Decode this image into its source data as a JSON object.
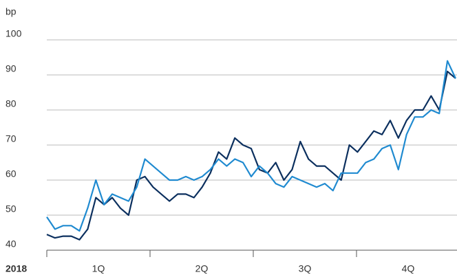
{
  "chart_data": {
    "type": "line",
    "y_unit": "bp",
    "year": "2018",
    "quarters": [
      "1Q",
      "2Q",
      "3Q",
      "4Q"
    ],
    "ylim": [
      40,
      100
    ],
    "yticks": [
      40,
      50,
      60,
      70,
      80,
      90,
      100
    ],
    "grid": true,
    "series": [
      {
        "color": "#0b2f5e",
        "values": [
          44.5,
          43.5,
          44,
          44,
          43,
          46,
          55,
          53,
          55,
          52,
          50,
          60,
          61,
          58,
          56,
          54,
          56,
          56,
          55,
          58,
          62,
          68,
          66,
          72,
          70,
          69,
          63,
          62,
          65,
          60,
          63,
          71,
          66,
          64,
          64,
          62,
          60,
          70,
          68,
          71,
          74,
          73,
          77,
          72,
          77,
          80,
          80,
          84,
          80,
          91,
          89
        ]
      },
      {
        "color": "#1f8ad0",
        "values": [
          49.5,
          46,
          47,
          47,
          45.5,
          52,
          60,
          53,
          56,
          55,
          54,
          58,
          66,
          64,
          62,
          60,
          60,
          61,
          60,
          61,
          63,
          66,
          64,
          66,
          65,
          61,
          64,
          62,
          59,
          58,
          61,
          60,
          59,
          58,
          59,
          57,
          62,
          62,
          62,
          65,
          66,
          69,
          70,
          63,
          73,
          78,
          78,
          80,
          79,
          94,
          89
        ]
      }
    ]
  }
}
